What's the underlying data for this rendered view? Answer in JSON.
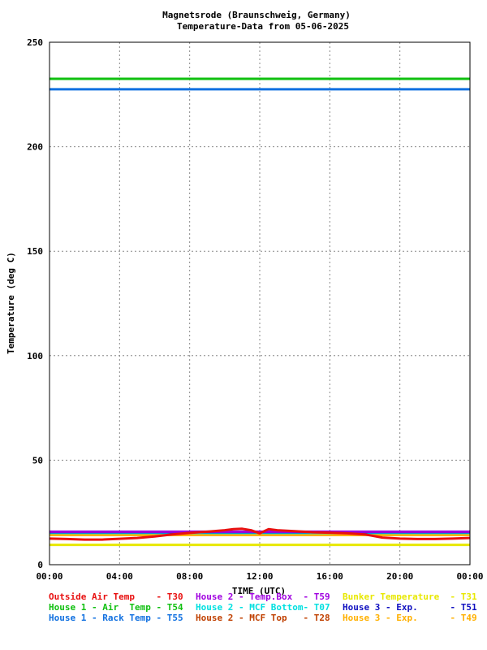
{
  "chart_data": {
    "type": "line",
    "title_line1": "Magnetsrode (Braunschweig, Germany)",
    "title_line2": "Temperature-Data from 05-06-2025",
    "xlabel": "TIME (UTC)",
    "ylabel": "Temperature (deg C)",
    "xlim": [
      0,
      24
    ],
    "ylim": [
      0,
      250
    ],
    "grid": true,
    "x_tick_labels": [
      "00:00",
      "04:00",
      "08:00",
      "12:00",
      "16:00",
      "20:00",
      "00:00"
    ],
    "y_tick_labels": [
      "0",
      "50",
      "100",
      "150",
      "200",
      "250"
    ],
    "series": [
      {
        "name": "Outside Air Temp    - T30",
        "color": "#e81010",
        "x": [
          0,
          1,
          2,
          3,
          4,
          5,
          6,
          7,
          8,
          9,
          10,
          10.5,
          11,
          11.5,
          12,
          12.5,
          13,
          14,
          15,
          16,
          17,
          18,
          19,
          20,
          21,
          22,
          23,
          24
        ],
        "y": [
          12.5,
          12.3,
          12.0,
          12.0,
          12.4,
          12.8,
          13.5,
          14.5,
          15.2,
          15.8,
          16.5,
          17.0,
          17.2,
          16.5,
          15.0,
          17.0,
          16.5,
          16.0,
          15.5,
          15.3,
          15.0,
          14.5,
          13.0,
          12.5,
          12.3,
          12.3,
          12.5,
          12.8
        ]
      },
      {
        "name": "House 2 - Temp.Box  - T59",
        "color": "#a000e0",
        "x": [
          0,
          24
        ],
        "y": [
          15.8,
          15.8
        ]
      },
      {
        "name": "Bunker Temperature  - T31",
        "color": "#e8e800",
        "x": [
          0,
          24
        ],
        "y": [
          9.5,
          9.5
        ]
      },
      {
        "name": "House 1 - Air  Temp - T54",
        "color": "#10c010",
        "x": [
          0,
          24
        ],
        "y": [
          232.5,
          232.5
        ]
      },
      {
        "name": "House 2 - MCF Bottom- T07",
        "color": "#00e0e0",
        "x": [
          0,
          24
        ],
        "y": [
          15.2,
          15.2
        ]
      },
      {
        "name": "House 3 - Exp.      - T51",
        "color": "#1010c0",
        "x": [
          0,
          24
        ],
        "y": [
          15.6,
          15.6
        ]
      },
      {
        "name": "House 1 - Rack Temp - T55",
        "color": "#1070e0",
        "x": [
          0,
          24
        ],
        "y": [
          227.5,
          227.5
        ]
      },
      {
        "name": "House 2 - MCF Top   - T28",
        "color": "#c04000",
        "x": [
          0,
          24
        ],
        "y": [
          14.6,
          14.6
        ]
      },
      {
        "name": "House 3 - Exp.      - T49",
        "color": "#ffb000",
        "x": [
          0,
          24
        ],
        "y": [
          14.2,
          14.2
        ]
      }
    ]
  }
}
